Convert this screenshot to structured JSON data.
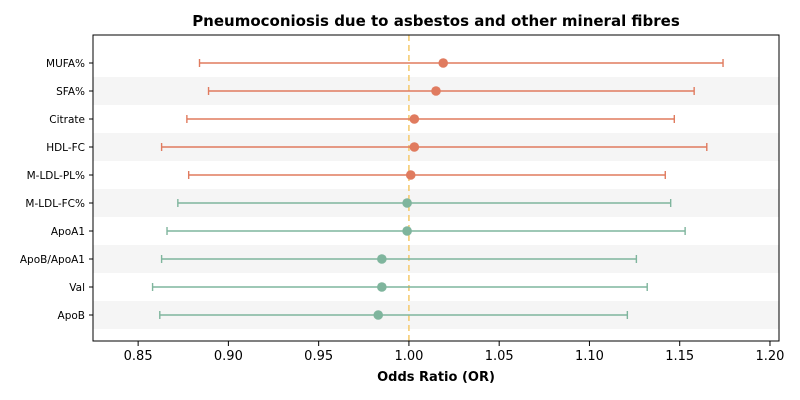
{
  "chart_data": {
    "type": "forest",
    "title": "Pneumoconiosis due to asbestos and other mineral fibres",
    "xlabel": "Odds Ratio (OR)",
    "ylabel": "",
    "xlim": [
      0.825,
      1.205
    ],
    "xticks": [
      0.85,
      0.9,
      0.95,
      1.0,
      1.05,
      1.1,
      1.15,
      1.2
    ],
    "xtick_labels": [
      "0.85",
      "0.90",
      "0.95",
      "1.00",
      "1.05",
      "1.10",
      "1.15",
      "1.20"
    ],
    "reference_line": 1.0,
    "grid": false,
    "alternating_row_shading": true,
    "colors": {
      "positive": "#e07b5f",
      "negative": "#7fb59d",
      "reference": "#f5c96a",
      "band": "#f5f5f5"
    },
    "rows": [
      {
        "label": "MUFA%",
        "or": 1.019,
        "lower": 0.884,
        "upper": 1.174
      },
      {
        "label": "SFA%",
        "or": 1.015,
        "lower": 0.889,
        "upper": 1.158
      },
      {
        "label": "Citrate",
        "or": 1.003,
        "lower": 0.877,
        "upper": 1.147
      },
      {
        "label": "HDL-FC",
        "or": 1.003,
        "lower": 0.863,
        "upper": 1.165
      },
      {
        "label": "M-LDL-PL%",
        "or": 1.001,
        "lower": 0.878,
        "upper": 1.142
      },
      {
        "label": "M-LDL-FC%",
        "or": 0.999,
        "lower": 0.872,
        "upper": 1.145
      },
      {
        "label": "ApoA1",
        "or": 0.999,
        "lower": 0.866,
        "upper": 1.153
      },
      {
        "label": "ApoB/ApoA1",
        "or": 0.985,
        "lower": 0.863,
        "upper": 1.126
      },
      {
        "label": "Val",
        "or": 0.985,
        "lower": 0.858,
        "upper": 1.132
      },
      {
        "label": "ApoB",
        "or": 0.983,
        "lower": 0.862,
        "upper": 1.121
      }
    ]
  }
}
